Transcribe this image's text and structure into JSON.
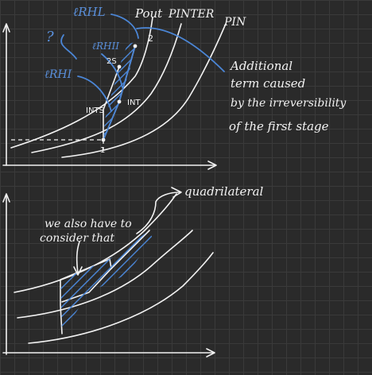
{
  "top": {
    "labels": {
      "p_out": "Pout",
      "p_inter": "PINTER",
      "p_in": "PIN",
      "l_rhi": "ℓRHI",
      "l_rhii": "ℓRHII",
      "l_rhl": "ℓRHL",
      "question": "?",
      "pt_2": "2",
      "pt_2s": "2S",
      "pt_ints": "INTS",
      "pt_int": "INT",
      "pt_1": "1"
    },
    "note": [
      "Additional",
      "term caused",
      "by the irreversibility",
      "of the first stage"
    ]
  },
  "bottom": {
    "note_left": [
      "we also have to",
      "consider that"
    ],
    "note_right": "quadrilateral"
  },
  "colors": {
    "ink": "#f2f2f2",
    "accent": "#4b86d6",
    "background": "#2a2a2a"
  }
}
